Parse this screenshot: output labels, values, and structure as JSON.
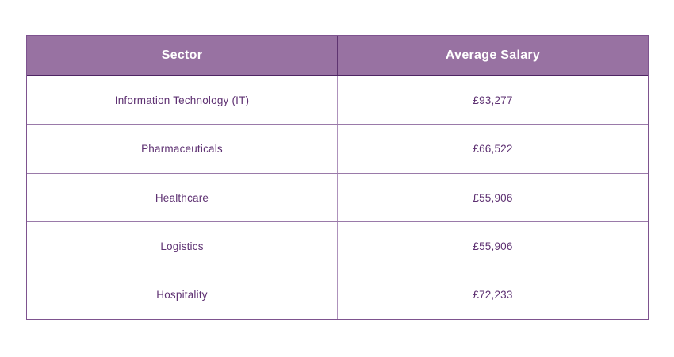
{
  "colors": {
    "header_bg": "#9872A2",
    "header_text": "#FFFFFF",
    "text": "#5E3172",
    "border_outer": "#7E538F",
    "header_border": "#4E2563",
    "divider_dark": "#5E3370",
    "divider_light": "#AE92BC",
    "row_border": "#9A7AA9",
    "page_bg": "#FFFFFF"
  },
  "chart_data": {
    "type": "table",
    "columns": [
      "Sector",
      "Average Salary"
    ],
    "rows": [
      [
        "Information Technology (IT)",
        "£93,277"
      ],
      [
        "Pharmaceuticals",
        "£66,522"
      ],
      [
        "Healthcare",
        "£55,906"
      ],
      [
        "Logistics",
        "£55,906"
      ],
      [
        "Hospitality",
        "£72,233"
      ]
    ],
    "values_gbp": [
      93277,
      66522,
      55906,
      55906,
      72233
    ],
    "currency": "GBP"
  }
}
